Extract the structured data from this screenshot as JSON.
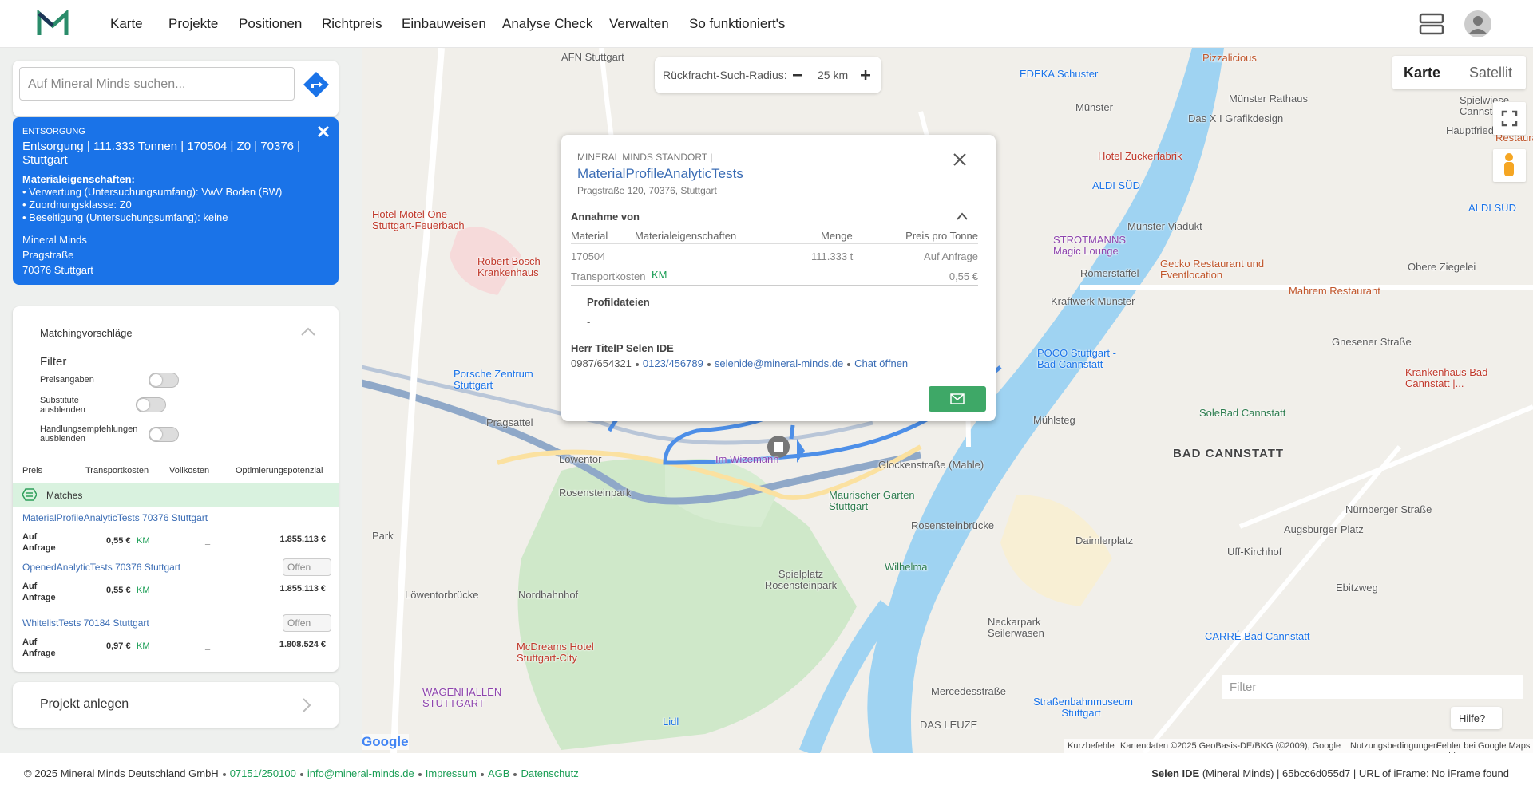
{
  "header": {
    "nav": [
      "Karte",
      "Projekte",
      "Positionen",
      "Richtpreis",
      "Einbauweisen",
      "Analyse Check",
      "Verwalten",
      "So funktioniert's"
    ]
  },
  "search": {
    "placeholder": "Auf Mineral Minds suchen..."
  },
  "info_card": {
    "kicker": "ENTSORGUNG",
    "title": "Entsorgung | 111.333 Tonnen | 170504 | Z0 | 70376 | Stuttgart",
    "props_heading": "Materialeigenschaften:",
    "props": [
      "• Verwertung (Untersuchungsumfang): VwV Boden (BW)",
      "• Zuordnungsklasse: Z0",
      "• Beseitigung (Untersuchungsumfang): keine"
    ],
    "address": [
      "Mineral Minds",
      "Pragstraße",
      "70376 Stuttgart"
    ]
  },
  "matching": {
    "title": "Matchingvorschläge",
    "filter_title": "Filter",
    "toggles": [
      "Preisangaben",
      "Substitute ausblenden",
      "Handlungsempfehlungen ausblenden"
    ],
    "columns": [
      "Preis",
      "Transportkosten",
      "Vollkosten",
      "Optimierungspotenzial"
    ],
    "matches_label": "Matches",
    "items": [
      {
        "name": "MaterialProfileAnalyticTests 70376 Stuttgart",
        "price": "Auf Anfrage",
        "transport": "0,55 €",
        "km": "KM",
        "full": "_",
        "potential": "1.855.113 €"
      },
      {
        "name": "OpenedAnalyticTests 70376 Stuttgart",
        "status": "Offen",
        "price": "Auf Anfrage",
        "transport": "0,55 €",
        "km": "KM",
        "full": "_",
        "potential": "1.855.113 €"
      },
      {
        "name": "WhitelistTests 70184 Stuttgart",
        "status": "Offen",
        "price": "Auf Anfrage",
        "transport": "0,97 €",
        "km": "KM",
        "full": "_",
        "potential": "1.808.524 €"
      }
    ]
  },
  "project_button": "Projekt anlegen",
  "radius": {
    "label": "Rückfracht-Such-Radius:",
    "value": "25 km"
  },
  "map_type": [
    "Karte",
    "Satellit"
  ],
  "popup": {
    "kicker": "MINERAL MINDS STANDORT |",
    "title": "MaterialProfileAnalyticTests",
    "address": "Pragstraße 120, 70376, Stuttgart",
    "section": "Annahme von",
    "columns": [
      "Material",
      "Materialeigenschaften",
      "Menge",
      "Preis pro Tonne"
    ],
    "row": [
      "170504",
      "111.333 t",
      "Auf Anfrage"
    ],
    "transport_label": "Transportkosten",
    "transport_km": "KM",
    "transport_value": "0,55 €",
    "files_title": "Profildateien",
    "files_value": "-",
    "contact_name": "Herr TitelP Selen IDE",
    "phone": "0987/654321",
    "mobile": "0123/456789",
    "email": "selenide@mineral-minds.de",
    "chat": "Chat öffnen"
  },
  "map": {
    "labels": [
      "AFN Stuttgart",
      "EDEKA Schuster",
      "Pizzalicious",
      "Münster Rathaus",
      "Münster",
      "Das X I Grafikdesign",
      "Hotel Zuckerfabrik",
      "ALDI SÜD",
      "Münster Viadukt",
      "ALDI SÜD",
      "Obere Ziegelei",
      "Hotel Motel One Stuttgart-Feuerbach",
      "STROTMANNS Magic Lounge",
      "Gecko Restaurant und Eventlocation",
      "Robert Bosch Krankenhaus",
      "Römerstaffel",
      "Kraftwerk Münster",
      "Mahrem Restaurant",
      "Gnesener Straße",
      "POCO Stuttgart - Bad Cannstatt",
      "Porsche Zentrum Stuttgart",
      "Krankenhaus Bad Cannstatt |...",
      "Pragsattel",
      "SoleBad Cannstatt",
      "Mühlsteg",
      "BAD CANNSTATT",
      "Löwentor",
      "Im Wizemann",
      "Glockenstraße (Mahle)",
      "Rosensteinpark",
      "Maurischer Garten Stuttgart",
      "Rosensteinbrücke",
      "Daimlerplatz",
      "Augsburger Platz",
      "Nürnberger Straße",
      "Uff-Kirchhof",
      "Spielplatz Rosensteinpark",
      "Wilhelma",
      "Löwentorbrücke",
      "Nordbahnhof",
      "Ebitzweg",
      "Neckarpark Seilerwasen",
      "CARRÉ Bad Cannstatt",
      "McDreams Hotel Stuttgart-City",
      "WAGENHALLEN STUTTGART",
      "Mercedesstraße",
      "Straßenbahnmuseum Stuttgart",
      "Lidl",
      "DAS LEUZE",
      "Park",
      "Spielwiese Cannstatt",
      "Hauptfriedhof",
      "Restaurant"
    ],
    "filter_placeholder": "Filter",
    "help": "Hilfe?",
    "google": "Google",
    "attribution": [
      "Kurzbefehle",
      "Kartendaten ©2025 GeoBasis-DE/BKG (©2009), Google",
      "Nutzungsbedingungen",
      "Fehler bei Google Maps melden"
    ]
  },
  "footer": {
    "copyright": "© 2025 Mineral Minds Deutschland GmbH",
    "phone": "07151/250100",
    "email": "info@mineral-minds.de",
    "links": [
      "Impressum",
      "AGB",
      "Datenschutz"
    ],
    "user": "Selen IDE",
    "meta": "(Mineral Minds) | 65bcc6d055d7 | URL of iFrame: No iFrame found"
  }
}
